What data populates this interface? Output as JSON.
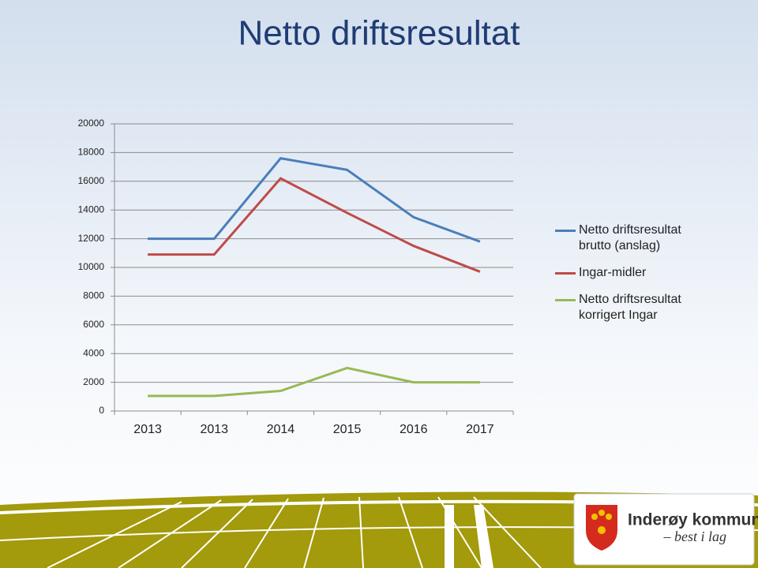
{
  "chart_data": {
    "type": "line",
    "title": "Netto driftsresultat",
    "categories": [
      "2013",
      "2013",
      "2014",
      "2015",
      "2016",
      "2017"
    ],
    "series": [
      {
        "name": "Netto driftsresultat brutto (anslag)",
        "color": "#4a7ebb",
        "values": [
          12000,
          12000,
          17600,
          16800,
          13500,
          11800
        ]
      },
      {
        "name": "Ingar-midler",
        "color": "#be4b48",
        "values": [
          10900,
          10900,
          16200,
          13800,
          11500,
          9700
        ]
      },
      {
        "name": "Netto driftsresultat korrigert Ingar",
        "color": "#98b954",
        "values": [
          1050,
          1050,
          1400,
          3000,
          2000,
          2000
        ]
      }
    ],
    "ylim": [
      0,
      20000
    ],
    "yticks": [
      0,
      2000,
      4000,
      6000,
      8000,
      10000,
      12000,
      14000,
      16000,
      18000,
      20000
    ],
    "grid": true,
    "legend": "right"
  },
  "logo": {
    "name": "Inderøy kommune",
    "tagline": "– best i lag"
  }
}
